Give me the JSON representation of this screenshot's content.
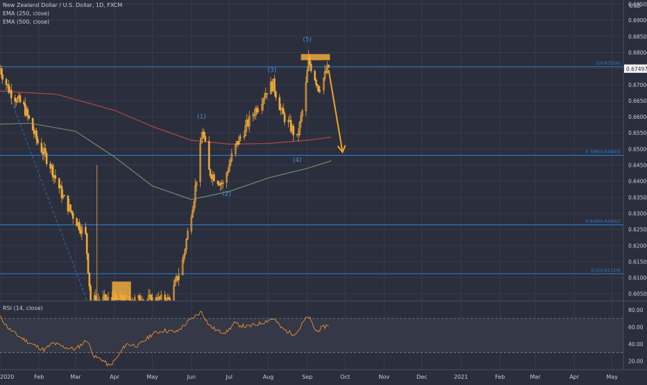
{
  "header": {
    "symbol": "New Zealand Dollar / U.S. Dollar, 1D, FXCM",
    "indicators": [
      "EMA (250, close)",
      "EMA (500, close)"
    ],
    "currency": "USD"
  },
  "rsi_label": "RSI (14, close)",
  "colors": {
    "background": "#2b2f3d",
    "grid": "#363b4a",
    "candle": "#f0a93a",
    "ema250": "#b5483f",
    "ema500": "#6c8f6a",
    "fib_line": "#2f7fd1",
    "wave_label": "#3d8fe0",
    "arrow": "#f4a52a",
    "rsi_line": "#e08a2e"
  },
  "chart_data": {
    "type": "candlestick",
    "price_axis": {
      "ticks": [
        "0.69500",
        "0.69000",
        "0.68500",
        "0.68000",
        "0.67500",
        "0.67000",
        "0.66500",
        "0.66000",
        "0.65500",
        "0.65000",
        "0.64500",
        "0.64000",
        "0.63500",
        "0.63000",
        "0.62500",
        "0.62000",
        "0.61500",
        "0.61000",
        "0.60500"
      ],
      "range": [
        0.603,
        0.6963
      ]
    },
    "time_axis": {
      "ticks": [
        "2020",
        "Feb",
        "Mar",
        "Apr",
        "May",
        "Jun",
        "Jul",
        "Aug",
        "Sep",
        "Oct",
        "Nov",
        "Dec",
        "2021",
        "Feb",
        "Mar",
        "Apr",
        "May"
      ],
      "range": [
        "2020-01-01",
        "2021-05-10"
      ]
    },
    "current_price": "0.67497",
    "price_path": [
      {
        "date": "2020-01-01",
        "price": 0.675
      },
      {
        "date": "2020-01-08",
        "price": 0.6685
      },
      {
        "date": "2020-01-20",
        "price": 0.663
      },
      {
        "date": "2020-01-31",
        "price": 0.652
      },
      {
        "date": "2020-02-10",
        "price": 0.645
      },
      {
        "date": "2020-02-20",
        "price": 0.635
      },
      {
        "date": "2020-03-01",
        "price": 0.628
      },
      {
        "date": "2020-03-09",
        "price": 0.623
      },
      {
        "date": "2020-03-13",
        "price": 0.603
      },
      {
        "date": "2020-04-01",
        "price": 0.603
      },
      {
        "date": "2020-04-15",
        "price": 0.603
      },
      {
        "date": "2020-05-01",
        "price": 0.603
      },
      {
        "date": "2020-05-15",
        "price": 0.603
      },
      {
        "date": "2020-05-25",
        "price": 0.615
      },
      {
        "date": "2020-06-03",
        "price": 0.635
      },
      {
        "date": "2020-06-10",
        "price": 0.656
      },
      {
        "date": "2020-06-15",
        "price": 0.643
      },
      {
        "date": "2020-06-26",
        "price": 0.639
      },
      {
        "date": "2020-07-05",
        "price": 0.65
      },
      {
        "date": "2020-07-20",
        "price": 0.661
      },
      {
        "date": "2020-08-01",
        "price": 0.669
      },
      {
        "date": "2020-08-05",
        "price": 0.67
      },
      {
        "date": "2020-08-12",
        "price": 0.661
      },
      {
        "date": "2020-08-20",
        "price": 0.656
      },
      {
        "date": "2020-08-24",
        "price": 0.653
      },
      {
        "date": "2020-08-30",
        "price": 0.666
      },
      {
        "date": "2020-09-02",
        "price": 0.6775
      },
      {
        "date": "2020-09-06",
        "price": 0.6735
      },
      {
        "date": "2020-09-10",
        "price": 0.669
      },
      {
        "date": "2020-09-14",
        "price": 0.672
      },
      {
        "date": "2020-09-18",
        "price": 0.6755
      }
    ],
    "ema250": [
      {
        "date": "2020-01-01",
        "price": 0.668
      },
      {
        "date": "2020-02-15",
        "price": 0.667
      },
      {
        "date": "2020-04-01",
        "price": 0.662
      },
      {
        "date": "2020-05-01",
        "price": 0.657
      },
      {
        "date": "2020-06-01",
        "price": 0.6527
      },
      {
        "date": "2020-07-01",
        "price": 0.6515
      },
      {
        "date": "2020-08-01",
        "price": 0.6517
      },
      {
        "date": "2020-09-01",
        "price": 0.6527
      },
      {
        "date": "2020-09-20",
        "price": 0.6537
      }
    ],
    "ema500": [
      {
        "date": "2020-01-01",
        "price": 0.6577
      },
      {
        "date": "2020-01-25",
        "price": 0.658
      },
      {
        "date": "2020-03-01",
        "price": 0.6555
      },
      {
        "date": "2020-04-01",
        "price": 0.6475
      },
      {
        "date": "2020-05-01",
        "price": 0.6385
      },
      {
        "date": "2020-06-01",
        "price": 0.6343
      },
      {
        "date": "2020-07-01",
        "price": 0.6368
      },
      {
        "date": "2020-08-01",
        "price": 0.641
      },
      {
        "date": "2020-09-01",
        "price": 0.644
      },
      {
        "date": "2020-09-20",
        "price": 0.6463
      }
    ],
    "fib_levels": [
      {
        "label": "1(0.67556)",
        "price": 0.67556
      },
      {
        "label": "0.786(0.64803)",
        "price": 0.64803
      },
      {
        "label": "0.618(0.62642)",
        "price": 0.62642
      },
      {
        "label": "0.5(0.61124)",
        "price": 0.61124
      }
    ],
    "waves": [
      {
        "label": "(1)",
        "date": "2020-06-09",
        "price": 0.6595
      },
      {
        "label": "(2)",
        "date": "2020-06-29",
        "price": 0.6355
      },
      {
        "label": "(3)",
        "date": "2020-08-04",
        "price": 0.674
      },
      {
        "label": "(4)",
        "date": "2020-08-24",
        "price": 0.646
      },
      {
        "label": "(5)",
        "date": "2020-09-01",
        "price": 0.6835
      }
    ],
    "projection": {
      "from": {
        "date": "2020-09-18",
        "price": 0.6745
      },
      "to": {
        "date": "2020-09-29",
        "price": 0.649
      }
    },
    "resistance_zone": {
      "from": "2020-08-27",
      "to": "2020-09-19",
      "low": 0.6776,
      "high": 0.6795
    },
    "rsi": {
      "ticks": [
        "80.00",
        "60.00",
        "40.00",
        "20.00"
      ],
      "range": [
        10,
        88
      ],
      "bands": [
        70,
        30
      ],
      "values": [
        {
          "date": "2020-01-01",
          "value": 72
        },
        {
          "date": "2020-01-08",
          "value": 58
        },
        {
          "date": "2020-01-15",
          "value": 50
        },
        {
          "date": "2020-01-25",
          "value": 41
        },
        {
          "date": "2020-02-05",
          "value": 33
        },
        {
          "date": "2020-02-12",
          "value": 41
        },
        {
          "date": "2020-02-22",
          "value": 36
        },
        {
          "date": "2020-03-01",
          "value": 34
        },
        {
          "date": "2020-03-10",
          "value": 45
        },
        {
          "date": "2020-03-16",
          "value": 25
        },
        {
          "date": "2020-03-22",
          "value": 22
        },
        {
          "date": "2020-03-28",
          "value": 14
        },
        {
          "date": "2020-04-03",
          "value": 24
        },
        {
          "date": "2020-04-10",
          "value": 40
        },
        {
          "date": "2020-04-20",
          "value": 38
        },
        {
          "date": "2020-05-01",
          "value": 52
        },
        {
          "date": "2020-05-10",
          "value": 56
        },
        {
          "date": "2020-05-20",
          "value": 54
        },
        {
          "date": "2020-05-31",
          "value": 68
        },
        {
          "date": "2020-06-09",
          "value": 78
        },
        {
          "date": "2020-06-15",
          "value": 62
        },
        {
          "date": "2020-06-22",
          "value": 55
        },
        {
          "date": "2020-06-29",
          "value": 54
        },
        {
          "date": "2020-07-05",
          "value": 64
        },
        {
          "date": "2020-07-15",
          "value": 60
        },
        {
          "date": "2020-07-25",
          "value": 64
        },
        {
          "date": "2020-08-05",
          "value": 70
        },
        {
          "date": "2020-08-12",
          "value": 58
        },
        {
          "date": "2020-08-20",
          "value": 52
        },
        {
          "date": "2020-08-24",
          "value": 54
        },
        {
          "date": "2020-08-30",
          "value": 68
        },
        {
          "date": "2020-09-02",
          "value": 72
        },
        {
          "date": "2020-09-08",
          "value": 55
        },
        {
          "date": "2020-09-12",
          "value": 58
        },
        {
          "date": "2020-09-18",
          "value": 63
        }
      ]
    }
  }
}
